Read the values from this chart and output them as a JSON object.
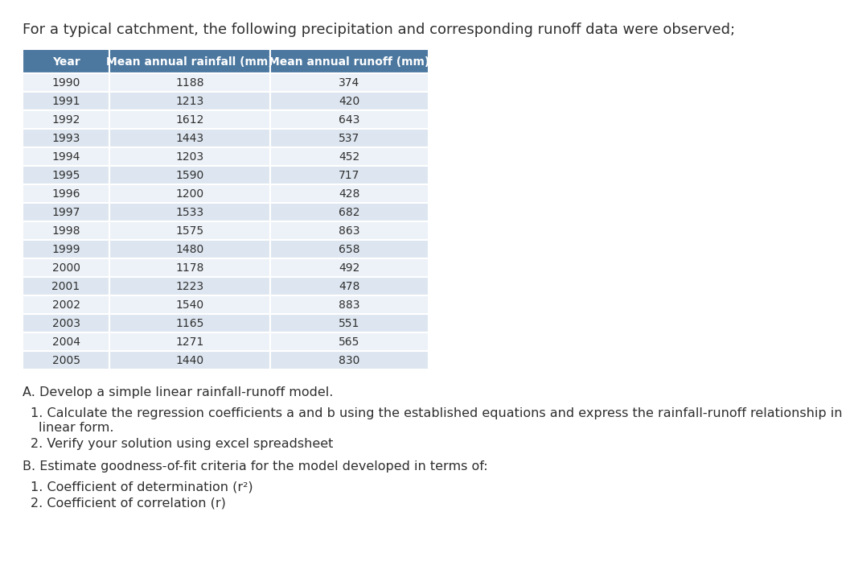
{
  "intro_text": "For a typical catchment, the following precipitation and corresponding runoff data were observed;",
  "col_headers": [
    "Year",
    "Mean annual rainfall (mm)",
    "Mean annual runoff (mm)"
  ],
  "years": [
    1990,
    1991,
    1992,
    1993,
    1994,
    1995,
    1996,
    1997,
    1998,
    1999,
    2000,
    2001,
    2002,
    2003,
    2004,
    2005
  ],
  "rainfall": [
    1188,
    1213,
    1612,
    1443,
    1203,
    1590,
    1200,
    1533,
    1575,
    1480,
    1178,
    1223,
    1540,
    1165,
    1271,
    1440
  ],
  "runoff": [
    374,
    420,
    643,
    537,
    452,
    717,
    428,
    682,
    863,
    658,
    492,
    478,
    883,
    551,
    565,
    830
  ],
  "header_bg": "#4c78a0",
  "header_text_color": "#ffffff",
  "row_even_bg": "#dde6f0",
  "row_odd_bg": "#edf2f8",
  "text_color": "#2f2f2f",
  "table_border_color": "#ffffff",
  "bg_color": "#ffffff",
  "intro_fontsize": 13.0,
  "header_fontsize": 10.0,
  "data_fontsize": 10.0,
  "body_fontsize": 11.5,
  "section_A_text": "A. Develop a simple linear rainfall-runoff model.",
  "section_A1_line1": "1. Calculate the regression coefficients a and b using the established equations and express the rainfall-runoff relationship in",
  "section_A1_line2": "   linear form.",
  "section_A2_text": "2. Verify your solution using excel spreadsheet",
  "section_B_text": "B. Estimate goodness-of-fit criteria for the model developed in terms of:",
  "section_B1_text": "1. Coefficient of determination (r²)",
  "section_B2_text": "2. Coefficient of correlation (r)"
}
